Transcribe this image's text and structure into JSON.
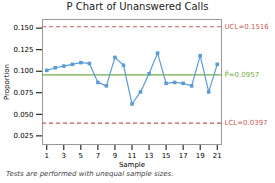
{
  "chart_data": {
    "type": "line",
    "title": "P Chart of Unanswered Calls",
    "x_label": "Sample",
    "y_label": "Proportion",
    "x": [
      1,
      2,
      3,
      4,
      5,
      6,
      7,
      8,
      9,
      10,
      11,
      12,
      13,
      14,
      15,
      16,
      17,
      18,
      19,
      20,
      21
    ],
    "values": [
      0.101,
      0.104,
      0.106,
      0.108,
      0.11,
      0.109,
      0.087,
      0.083,
      0.116,
      0.107,
      0.062,
      0.076,
      0.097,
      0.121,
      0.086,
      0.087,
      0.086,
      0.083,
      0.118,
      0.076,
      0.108
    ],
    "color": "#5b9bd5",
    "marker": "square",
    "xlim": [
      0.5,
      21.5
    ],
    "xticks": [
      1,
      3,
      5,
      7,
      9,
      11,
      13,
      15,
      17,
      19,
      21
    ],
    "ylim": [
      0.015,
      0.16
    ],
    "yticks": [
      {
        "value": 0.025,
        "label": "0.025"
      },
      {
        "value": 0.05,
        "label": "0.050"
      },
      {
        "value": 0.075,
        "label": "0.075"
      },
      {
        "value": 0.1,
        "label": "0.100"
      },
      {
        "value": 0.125,
        "label": "0.125"
      },
      {
        "value": 0.15,
        "label": "0.150"
      }
    ],
    "grid": false,
    "reference_lines": [
      {
        "label": "UCL=0.1516",
        "value": 0.1516,
        "color": "#c55a5a",
        "line_style": "dashed"
      },
      {
        "label": "LCL=0.0397",
        "value": 0.0397,
        "color": "#c55a5a",
        "line_style": "dashed"
      },
      {
        "label": "P̅=0.0957",
        "value": 0.0957,
        "color": "#70ad47",
        "line_style": "solid"
      }
    ],
    "footnote": "Tests are performed with unequal sample sizes."
  }
}
